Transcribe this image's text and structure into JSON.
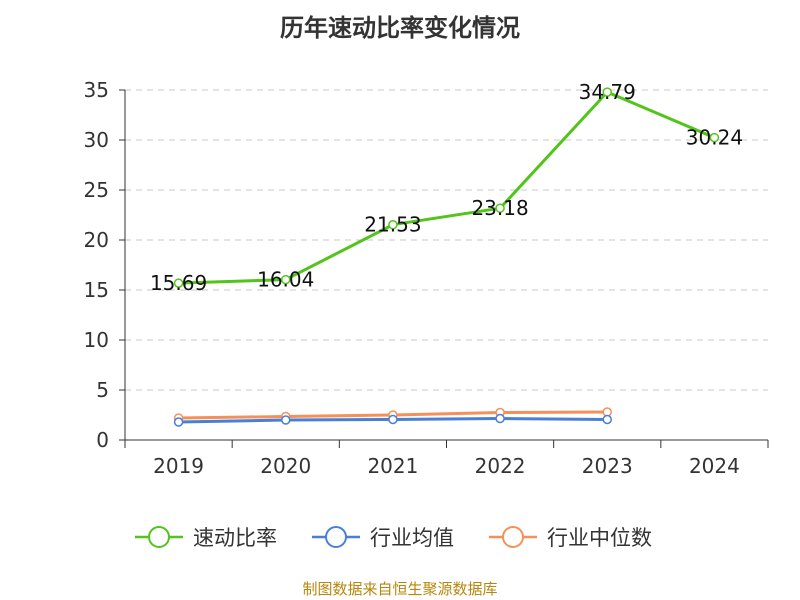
{
  "chart_data": {
    "type": "line",
    "title": "历年速动比率变化情况",
    "categories": [
      "2019",
      "2020",
      "2021",
      "2022",
      "2023",
      "2024"
    ],
    "ylim": [
      0,
      35
    ],
    "yticks": [
      0,
      5,
      10,
      15,
      20,
      25,
      30,
      35
    ],
    "grid": true,
    "legend_position": "bottom",
    "series": [
      {
        "name": "速动比率",
        "color": "#52c41a",
        "values": [
          15.69,
          16.04,
          21.53,
          23.18,
          34.79,
          30.24
        ],
        "labels": [
          "15.69",
          "16.04",
          "21.53",
          "23.18",
          "34.79",
          "30.24"
        ],
        "show_labels": true
      },
      {
        "name": "行业均值",
        "color": "#4a7fd6",
        "values": [
          1.8,
          2.0,
          2.05,
          2.15,
          2.05,
          null
        ],
        "show_labels": false
      },
      {
        "name": "行业中位数",
        "color": "#f5905a",
        "values": [
          2.2,
          2.35,
          2.5,
          2.75,
          2.8,
          null
        ],
        "show_labels": false
      }
    ]
  },
  "footer": {
    "source": "制图数据来自恒生聚源数据库"
  }
}
